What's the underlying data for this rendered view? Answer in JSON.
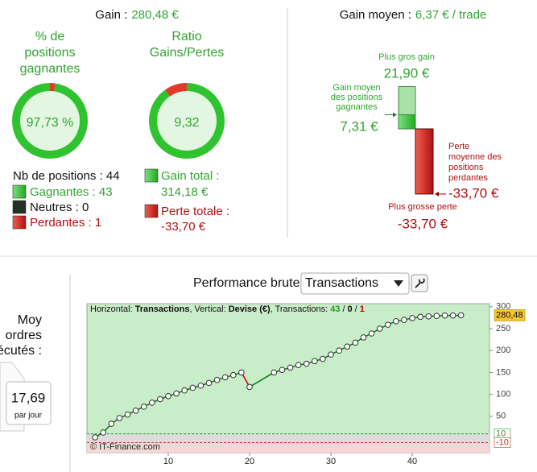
{
  "gain_panel": {
    "label": "Gain :",
    "value": "280,48 €"
  },
  "donuts": [
    {
      "title": [
        "% de",
        "positions",
        "gagnantes"
      ],
      "value": 97.73,
      "label": "97,73 %"
    },
    {
      "title": [
        "Ratio",
        "Gains/Pertes"
      ],
      "value": 9.32,
      "label": "9,32"
    }
  ],
  "positions": {
    "total": "Nb de positions : 44",
    "winners": "Gagnantes : 43",
    "neutral": "Neutres : 0",
    "losers": "Perdantes : 1"
  },
  "totals": {
    "gain_label": "Gain total :",
    "gain": {
      "value": 314.18,
      "label": "314,18 €"
    },
    "loss_label": "Perte totale :",
    "loss": {
      "value": -33.7,
      "label": "-33,70 €"
    }
  },
  "avg_panel": {
    "label": "Gain moyen :",
    "value": "6,37 € / trade"
  },
  "stats": {
    "max_gain": {
      "title": [
        "Plus gros gain"
      ],
      "value": 21.9,
      "label": "21,90 €"
    },
    "avg_gain": {
      "title": [
        "Gain moyen",
        "des positions",
        "gagnantes"
      ],
      "value": 7.31,
      "label": "7,31 €"
    },
    "avg_loss": {
      "title": [
        "Perte",
        "moyenne des",
        "positions",
        "perdantes"
      ],
      "value": -33.7,
      "label": "-33,70 €"
    },
    "max_loss": {
      "title": [
        "Plus grosse perte"
      ],
      "value": -33.7,
      "label": "-33,70 €"
    }
  },
  "performance": {
    "title": "Performance brute",
    "selector": "Transactions"
  },
  "side": {
    "label": [
      "Moy",
      "ordres",
      "écutés :"
    ],
    "value": "17,69",
    "unit": "par jour"
  },
  "chart_data": {
    "type": "line",
    "info": {
      "h_label": "Horizontal:",
      "h": "Transactions",
      "v_label": ", Vertical:",
      "v": "Devise (€)",
      "t_label": ", Transactions:",
      "sep": "/",
      "wins": 43,
      "neutral": 0,
      "losses": 1
    },
    "watermark": "© IT-Finance.com",
    "x": [
      1,
      2,
      3,
      4,
      5,
      6,
      7,
      8,
      9,
      10,
      11,
      12,
      13,
      14,
      15,
      16,
      17,
      18,
      19,
      20,
      23,
      24,
      25,
      26,
      27,
      28,
      29,
      30,
      31,
      32,
      33,
      34,
      35,
      36,
      37,
      38,
      39,
      40,
      41,
      42,
      43,
      44,
      45,
      46
    ],
    "series": [
      {
        "color": "#0a7a0a",
        "values": [
          2,
          13,
          33,
          46,
          54,
          63,
          72,
          81,
          89,
          96,
          102,
          109,
          115,
          120,
          126,
          133,
          139,
          144,
          150,
          117,
          150,
          156,
          161,
          167,
          170,
          176,
          181,
          191,
          200,
          209,
          218,
          230,
          239,
          250,
          259,
          267,
          270,
          274,
          277,
          278,
          279,
          280,
          280,
          280.48
        ]
      }
    ],
    "decline_color": "#c00000",
    "xlim": [
      0,
      49.5
    ],
    "ylim": [
      -33,
      307
    ],
    "xticks": [
      10,
      20,
      30,
      40
    ],
    "yticks": [
      50,
      100,
      150,
      200,
      250,
      300
    ],
    "thresholds": [
      10,
      -10
    ],
    "end_label": {
      "value": 280.48,
      "label": "280,48"
    }
  }
}
